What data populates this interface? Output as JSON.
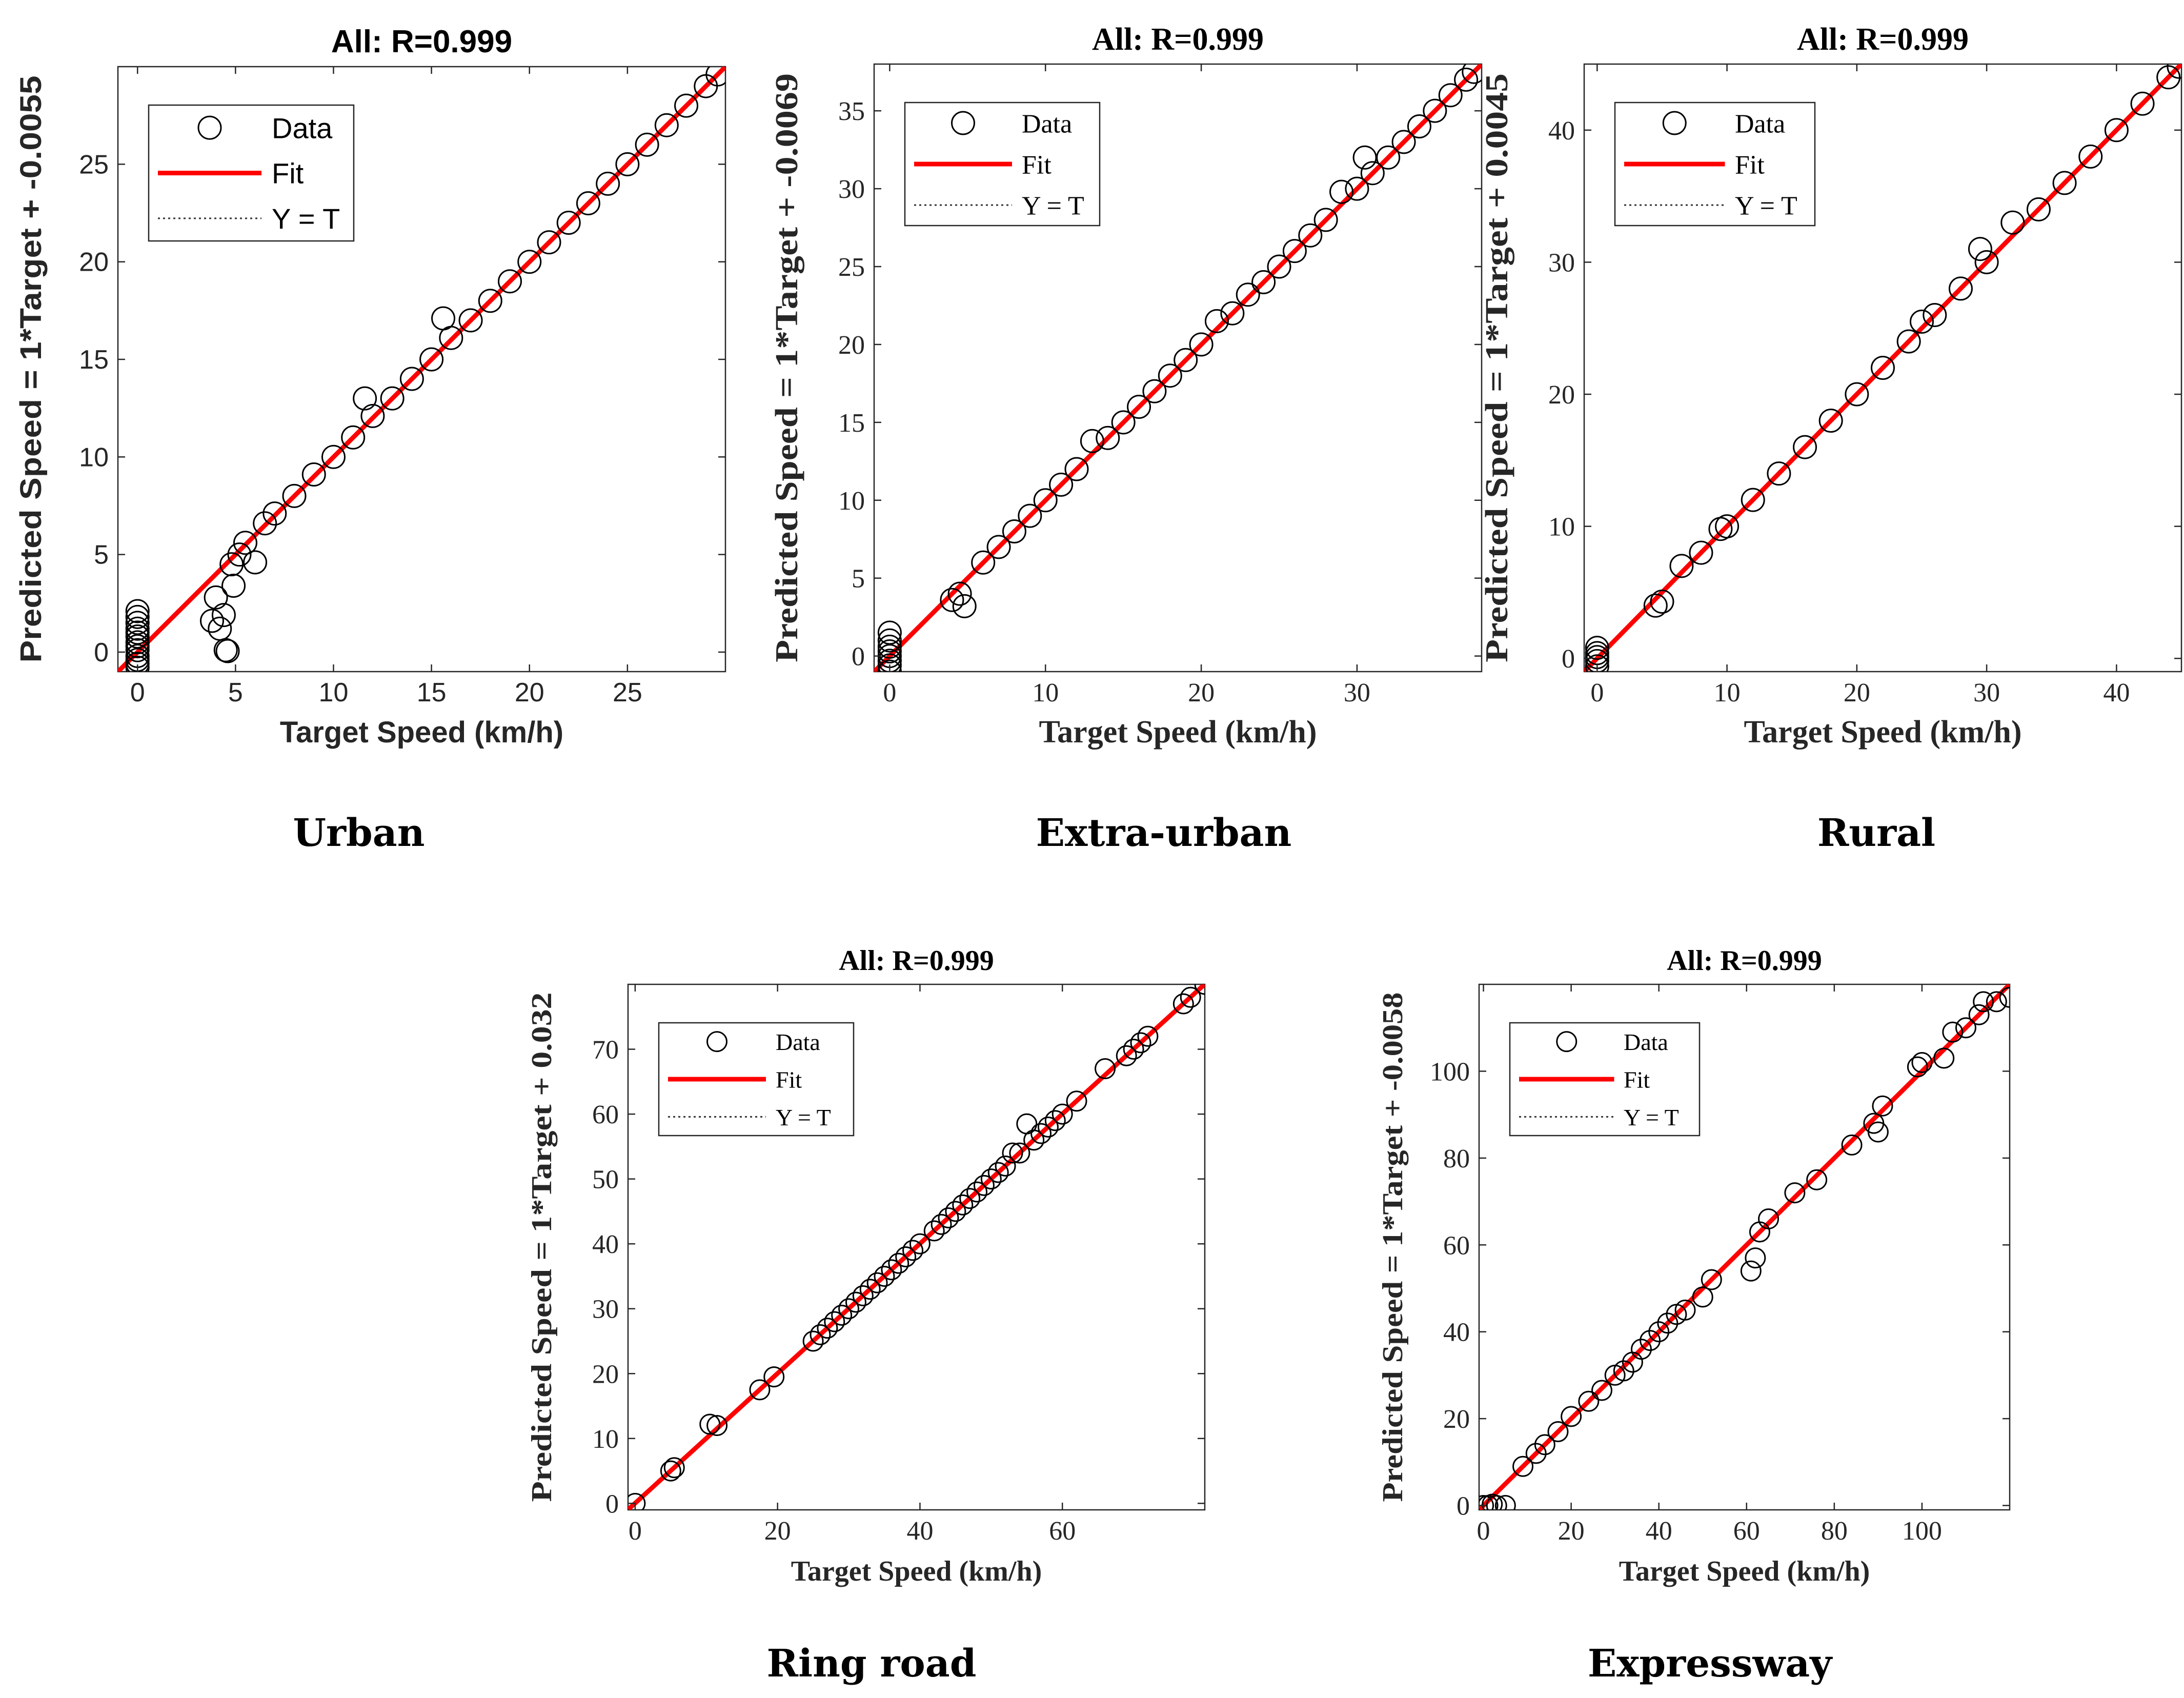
{
  "chart_data": [
    {
      "type": "scatter",
      "panel": "Urban",
      "title": "All: R=0.999",
      "xlabel": "Target Speed (km/h)",
      "ylabel": "Predicted Speed = 1*Target + -0.0055",
      "xlim": [
        -1,
        30
      ],
      "ylim": [
        -1,
        30
      ],
      "xticks": [
        0,
        5,
        10,
        15,
        20,
        25
      ],
      "yticks": [
        0,
        5,
        10,
        15,
        20,
        25
      ],
      "legend": [
        "Data",
        "Fit",
        "Y = T"
      ],
      "legend_position": "top-left",
      "fit": {
        "slope": 1,
        "intercept": -0.0055
      },
      "series": [
        {
          "name": "Data",
          "x": [
            0,
            0,
            0,
            0,
            0,
            0,
            0,
            0,
            0,
            0,
            0,
            0,
            0,
            3.8,
            4.0,
            4.2,
            4.4,
            4.5,
            4.6,
            4.8,
            4.9,
            5.2,
            5.5,
            6.0,
            6.5,
            7.0,
            8.0,
            9.0,
            10.0,
            11.0,
            11.6,
            12.0,
            13.0,
            14.0,
            15.0,
            15.6,
            16.0,
            17.0,
            18.0,
            19.0,
            20.0,
            21.0,
            22.0,
            23.0,
            24.0,
            25.0,
            26.0,
            27.0,
            28.0,
            29.0,
            29.6
          ],
          "y": [
            2.1,
            1.8,
            1.5,
            1.2,
            1.0,
            0.8,
            0.5,
            0.3,
            0.1,
            -0.2,
            -0.4,
            -0.6,
            -0.8,
            1.6,
            2.8,
            1.2,
            1.9,
            0.1,
            0.05,
            4.5,
            3.4,
            5.0,
            5.6,
            4.6,
            6.6,
            7.1,
            8.0,
            9.1,
            10.0,
            11.0,
            13.0,
            12.1,
            13.0,
            14.0,
            15.0,
            17.1,
            16.1,
            17.0,
            18.0,
            19.0,
            20.0,
            21.0,
            22.0,
            23.0,
            24.0,
            25.0,
            26.0,
            27.0,
            28.0,
            29.0,
            29.6
          ]
        }
      ]
    },
    {
      "type": "scatter",
      "panel": "Extra-urban",
      "title": "All: R=0.999",
      "xlabel": "Target Speed (km/h)",
      "ylabel": "Predicted Speed = 1*Target + -0.0069",
      "xlim": [
        -1,
        38
      ],
      "ylim": [
        -1,
        38
      ],
      "xticks": [
        0,
        10,
        20,
        30
      ],
      "yticks": [
        0,
        5,
        10,
        15,
        20,
        25,
        30,
        35
      ],
      "legend": [
        "Data",
        "Fit",
        "Y = T"
      ],
      "legend_position": "top-left",
      "fit": {
        "slope": 1,
        "intercept": -0.0069
      },
      "series": [
        {
          "name": "Data",
          "x": [
            0,
            0,
            0,
            0,
            0,
            0,
            0,
            0,
            4.0,
            4.5,
            4.8,
            6.0,
            7.0,
            8.0,
            9.0,
            10.0,
            11.0,
            12.0,
            13.0,
            14.0,
            15.0,
            16.0,
            17.0,
            18.0,
            19.0,
            20.0,
            21.0,
            22.0,
            23.0,
            24.0,
            25.0,
            26.0,
            27.0,
            28.0,
            29.0,
            30.0,
            30.5,
            31.0,
            32.0,
            33.0,
            34.0,
            35.0,
            36.0,
            37.0,
            37.5
          ],
          "y": [
            1.5,
            1.0,
            0.6,
            0.3,
            0.0,
            -0.3,
            -0.6,
            -1.0,
            3.6,
            4.0,
            3.2,
            6.0,
            7.0,
            8.0,
            9.0,
            10.0,
            11.0,
            12.0,
            13.8,
            14.0,
            15.0,
            16.0,
            17.0,
            18.0,
            19.0,
            20.0,
            21.5,
            22.0,
            23.2,
            24.0,
            25.0,
            26.0,
            27.0,
            28.0,
            29.8,
            30.0,
            32.0,
            31.0,
            32.0,
            33.0,
            34.0,
            35.0,
            36.0,
            37.0,
            37.5
          ]
        }
      ]
    },
    {
      "type": "scatter",
      "panel": "Rural",
      "title": "All: R=0.999",
      "xlabel": "Target Speed (km/h)",
      "ylabel": "Predicted Speed = 1*Target + 0.0045",
      "xlim": [
        -1,
        45
      ],
      "ylim": [
        -1,
        45
      ],
      "xticks": [
        0,
        10,
        20,
        30,
        40
      ],
      "yticks": [
        0,
        10,
        20,
        30,
        40
      ],
      "legend": [
        "Data",
        "Fit",
        "Y = T"
      ],
      "legend_position": "top-left",
      "fit": {
        "slope": 1,
        "intercept": 0.0045
      },
      "series": [
        {
          "name": "Data",
          "x": [
            0,
            0,
            0,
            0,
            0,
            4.5,
            5.0,
            6.5,
            8.0,
            9.5,
            10.0,
            12.0,
            14.0,
            16.0,
            18.0,
            20.0,
            22.0,
            24.0,
            25.0,
            26.0,
            28.0,
            29.5,
            30.0,
            32.0,
            34.0,
            36.0,
            38.0,
            40.0,
            42.0,
            44.0,
            44.8
          ],
          "y": [
            0.8,
            0.4,
            0.1,
            -0.2,
            -0.6,
            4.0,
            4.3,
            7.0,
            8.0,
            9.8,
            10.0,
            12.0,
            14.0,
            16.0,
            18.0,
            20.0,
            22.0,
            24.0,
            25.5,
            26.0,
            28.0,
            31.0,
            30.0,
            33.0,
            34.0,
            36.0,
            38.0,
            40.0,
            42.0,
            44.0,
            44.8
          ]
        }
      ]
    },
    {
      "type": "scatter",
      "panel": "Ring road",
      "title": "All: R=0.999",
      "xlabel": "Target Speed (km/h)",
      "ylabel": "Predicted Speed = 1*Target + 0.032",
      "xlim": [
        -1,
        80
      ],
      "ylim": [
        -1,
        80
      ],
      "xticks": [
        0,
        20,
        40,
        60
      ],
      "yticks": [
        0,
        10,
        20,
        30,
        40,
        50,
        60,
        70
      ],
      "legend": [
        "Data",
        "Fit",
        "Y = T"
      ],
      "legend_position": "top-left",
      "fit": {
        "slope": 1,
        "intercept": 0.032
      },
      "series": [
        {
          "name": "Data",
          "x": [
            0,
            5,
            5.5,
            10.5,
            11.5,
            17.5,
            19.5,
            25,
            26,
            27,
            28,
            29,
            30,
            31,
            32,
            33,
            34,
            35,
            36,
            37,
            38,
            39,
            40,
            42,
            43,
            44,
            45,
            46,
            47,
            48,
            49,
            50,
            51,
            52,
            53,
            54,
            55,
            56,
            57,
            58,
            59,
            60,
            62,
            66,
            69,
            70,
            71,
            72,
            77,
            78,
            80
          ],
          "y": [
            0,
            5,
            5.5,
            12.2,
            12.0,
            17.5,
            19.5,
            25,
            26,
            27,
            28,
            29,
            30,
            31,
            32,
            33,
            34,
            35,
            36,
            37,
            38,
            39,
            40,
            42,
            43,
            44,
            45,
            46,
            47,
            48,
            49,
            50,
            51,
            52,
            54,
            54,
            58.5,
            56,
            57,
            58,
            59,
            60,
            62,
            67,
            69,
            70,
            71,
            72,
            77,
            78,
            80
          ]
        }
      ]
    },
    {
      "type": "scatter",
      "panel": "Expressway",
      "title": "All: R=0.999",
      "xlabel": "Target Speed (km/h)",
      "ylabel": "Predicted Speed = 1*Target + -0.0058",
      "xlim": [
        -1,
        120
      ],
      "ylim": [
        -1,
        120
      ],
      "xticks": [
        0,
        20,
        40,
        60,
        80,
        100
      ],
      "yticks": [
        0,
        20,
        40,
        60,
        80,
        100
      ],
      "legend": [
        "Data",
        "Fit",
        "Y = T"
      ],
      "legend_position": "top-left",
      "fit": {
        "slope": 1,
        "intercept": -0.0058
      },
      "series": [
        {
          "name": "Data",
          "x": [
            0,
            1,
            2,
            3,
            5,
            9,
            12,
            14,
            17,
            20,
            24,
            27,
            30,
            32,
            34,
            36,
            38,
            40,
            42,
            44,
            46,
            50,
            52,
            61,
            62,
            63,
            65,
            71,
            76,
            84,
            89,
            90,
            91,
            99,
            100,
            105,
            107,
            110,
            113,
            114,
            117,
            120
          ],
          "y": [
            0,
            0,
            0.3,
            0,
            0,
            9,
            12,
            14,
            17,
            20.5,
            24,
            26.5,
            30,
            31,
            33,
            36,
            38,
            40,
            42,
            44,
            45,
            48,
            52,
            54,
            57,
            63,
            66,
            72,
            75,
            83,
            88,
            86,
            92,
            101,
            102,
            103,
            109,
            110,
            113,
            116,
            116,
            117
          ]
        }
      ]
    }
  ],
  "captions": {
    "urban": "Urban",
    "extra_urban": "Extra-urban",
    "rural": "Rural",
    "ring_road": "Ring road",
    "expressway": "Expressway"
  },
  "colors": {
    "fit": "#ff0000",
    "marker": "#000000",
    "axes": "#262626"
  }
}
